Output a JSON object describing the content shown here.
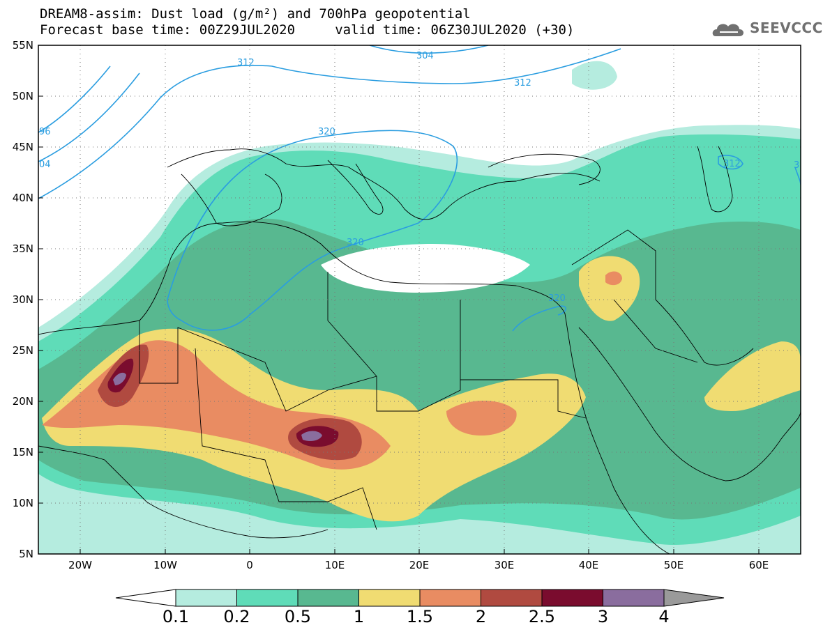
{
  "title_line_1": "DREAM8-assim: Dust load (g/m²) and 700hPa geopotential",
  "title_line_2": "Forecast base time: 00Z29JUL2020     valid time: 06Z30JUL2020 (+30)",
  "logo_text": "SEEVCCC",
  "lat_labels": [
    "55N",
    "50N",
    "45N",
    "40N",
    "35N",
    "30N",
    "25N",
    "20N",
    "15N",
    "10N",
    "5N"
  ],
  "lon_labels": [
    "20W",
    "10W",
    "0",
    "10E",
    "20E",
    "30E",
    "40E",
    "50E",
    "60E"
  ],
  "contour_labels": [
    "312",
    "304",
    "312",
    "320",
    "320",
    "320",
    "312",
    "96",
    "04",
    "3"
  ],
  "colorbar": {
    "ticks": [
      "0.1",
      "0.2",
      "0.5",
      "1",
      "1.5",
      "2",
      "2.5",
      "3",
      "4"
    ],
    "colors": [
      "#b5ecdf",
      "#5fdcb8",
      "#58b890",
      "#f0dc72",
      "#e98c62",
      "#b04a40",
      "#7a0c2e",
      "#8a6d9e"
    ],
    "under_color": "#ffffff",
    "over_color": "#9a9a9a"
  },
  "colors": {
    "contour": "#2a9de0",
    "border": "#000000"
  }
}
